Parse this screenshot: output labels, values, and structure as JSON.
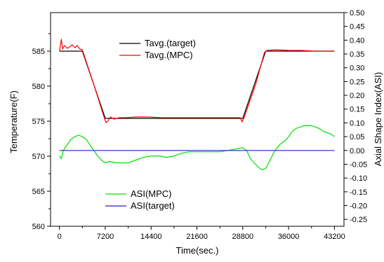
{
  "chart_data": {
    "type": "line",
    "title": "",
    "xlabel": "Time(sec.)",
    "ylabel_left": "Temperature(F)",
    "ylabel_right": "Axial Shape Index(ASI)",
    "xlim": [
      -1400,
      44700
    ],
    "ylim_left": [
      560,
      590.5
    ],
    "ylim_right": [
      -0.275,
      0.5
    ],
    "x_ticks": [
      0,
      7200,
      14400,
      21600,
      28800,
      36000,
      43200
    ],
    "x_tick_labels": [
      "0",
      "7200",
      "14400",
      "21600",
      "28800",
      "36000",
      "43200"
    ],
    "y_left_ticks": [
      560,
      565,
      570,
      575,
      580,
      585
    ],
    "y_left_tick_labels": [
      "560",
      "565",
      "570",
      "575",
      "580",
      "585"
    ],
    "y_right_ticks": [
      -0.25,
      -0.2,
      -0.15,
      -0.1,
      -0.05,
      0.0,
      0.05,
      0.1,
      0.15,
      0.2,
      0.25,
      0.3,
      0.35,
      0.4,
      0.45,
      0.5
    ],
    "y_right_tick_labels": [
      "-0.25",
      "-0.20",
      "-0.15",
      "-0.10",
      "-0.05",
      "0.00",
      "0.05",
      "0.10",
      "0.15",
      "0.20",
      "0.25",
      "0.30",
      "0.35",
      "0.40",
      "0.45",
      "0.50"
    ],
    "grid": false,
    "series": [
      {
        "name": "Tavg.(target)",
        "axis": "left",
        "color": "#000000",
        "x": [
          0,
          3600,
          7200,
          28800,
          32400,
          43200
        ],
        "y": [
          585,
          585,
          575.4,
          575.4,
          585,
          585
        ]
      },
      {
        "name": "Tavg.(MPC)",
        "axis": "left",
        "color": "#ff0000",
        "x": [
          0,
          300,
          500,
          800,
          1200,
          1600,
          2000,
          2400,
          2800,
          3200,
          3600,
          5400,
          7000,
          7300,
          7600,
          8000,
          8600,
          9400,
          10400,
          12000,
          14000,
          16000,
          18000,
          21600,
          25000,
          28400,
          28700,
          29000,
          30800,
          32200,
          32600,
          34000,
          36000,
          38000,
          40000,
          43200
        ],
        "y": [
          585,
          586.7,
          585.3,
          585.8,
          585.4,
          585.6,
          585.9,
          585.5,
          585.8,
          585.3,
          585.2,
          580.2,
          575.6,
          574.8,
          575.0,
          575.6,
          575.3,
          575.5,
          575.5,
          575.6,
          575.6,
          575.5,
          575.5,
          575.5,
          575.5,
          575.5,
          574.9,
          575.5,
          580.2,
          584.8,
          585.1,
          585.2,
          585.1,
          585.1,
          585.0,
          585.0
        ]
      },
      {
        "name": "ASI(MPC)",
        "axis": "right",
        "color": "#00e000",
        "x": [
          0,
          300,
          600,
          1200,
          1800,
          2400,
          3000,
          3600,
          4200,
          4800,
          5400,
          6000,
          6600,
          7200,
          7800,
          9000,
          10800,
          12000,
          13200,
          14400,
          15600,
          16800,
          18000,
          19200,
          20400,
          21600,
          22800,
          24000,
          25200,
          26400,
          27600,
          28800,
          29400,
          30000,
          30600,
          31200,
          31800,
          32400,
          33000,
          33600,
          34200,
          34800,
          35400,
          36000,
          36600,
          37200,
          37800,
          38400,
          39000,
          39600,
          40200,
          40800,
          41400,
          42000,
          42600,
          43200
        ],
        "y": [
          -0.02,
          -0.03,
          0.0,
          0.02,
          0.04,
          0.05,
          0.055,
          0.05,
          0.04,
          0.02,
          0.0,
          -0.02,
          -0.035,
          -0.045,
          -0.04,
          -0.045,
          -0.045,
          -0.035,
          -0.025,
          -0.02,
          -0.02,
          -0.025,
          -0.02,
          -0.01,
          -0.005,
          -0.005,
          -0.005,
          -0.005,
          -0.005,
          0.0,
          0.005,
          0.01,
          0.0,
          -0.03,
          -0.045,
          -0.06,
          -0.07,
          -0.065,
          -0.04,
          -0.01,
          0.01,
          0.025,
          0.035,
          0.05,
          0.07,
          0.08,
          0.085,
          0.09,
          0.09,
          0.09,
          0.085,
          0.08,
          0.07,
          0.065,
          0.06,
          0.05
        ]
      },
      {
        "name": "ASI(target)",
        "axis": "right",
        "color": "#2020c8",
        "x": [
          0,
          43200
        ],
        "y": [
          0.0,
          0.0
        ]
      }
    ],
    "legend_upper": [
      "Tavg.(target)",
      "Tavg.(MPC)"
    ],
    "legend_lower": [
      "ASI(MPC)",
      "ASI(target)"
    ]
  }
}
